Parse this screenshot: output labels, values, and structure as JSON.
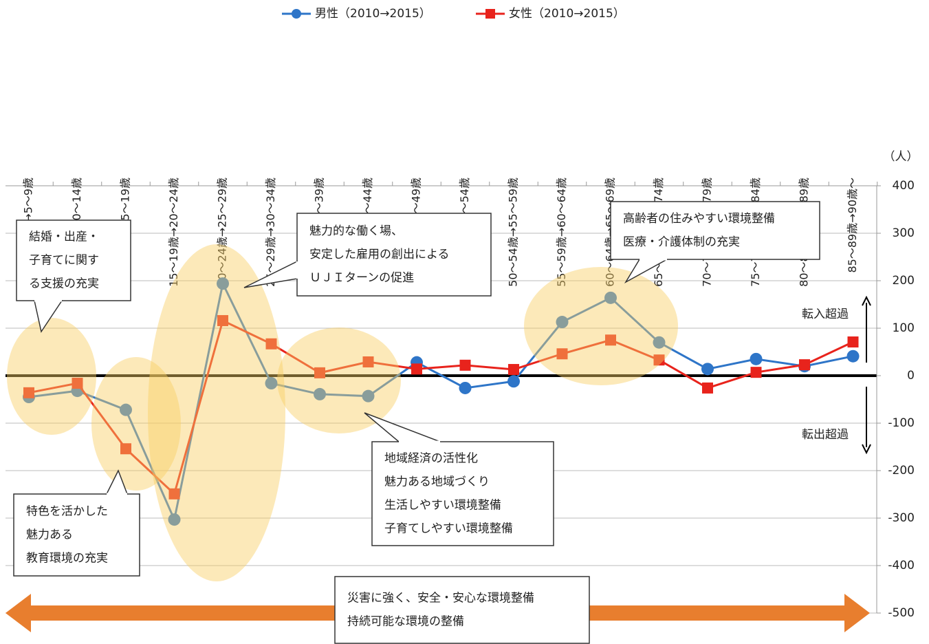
{
  "chart_data": {
    "type": "line",
    "unit_label": "（人）",
    "categories": [
      "0～4歳→5～9歳",
      "5～9歳→10～14歳",
      "10～14歳→15～19歳",
      "15～19歳→20～24歳",
      "20～24歳→25～29歳",
      "25～29歳→30～34歳",
      "30～34歳→35～39歳",
      "35～39歳→40～44歳",
      "40～44歳→45～49歳",
      "45～49歳→50～54歳",
      "50～54歳→55～59歳",
      "55～59歳→60～64歳",
      "60～64歳→65～69歳",
      "65～69歳→70～74歳",
      "70～74歳→75～79歳",
      "75～79歳→80～84歳",
      "80～84歳→85～89歳",
      "85～89歳→90歳～"
    ],
    "series": [
      {
        "name": "男性（2010→2015）",
        "color": "#2e75c8",
        "marker": "circle",
        "values": [
          -45,
          -32,
          -72,
          -303,
          194,
          -16,
          -39,
          -43,
          28,
          -26,
          -12,
          113,
          164,
          70,
          14,
          35,
          20,
          41
        ]
      },
      {
        "name": "女性（2010→2015）",
        "color": "#e8231c",
        "marker": "square",
        "values": [
          -36,
          -16,
          -154,
          -249,
          116,
          67,
          6,
          29,
          14,
          22,
          13,
          46,
          75,
          33,
          -26,
          7,
          23,
          71
        ]
      }
    ],
    "ylim": [
      -500,
      400
    ],
    "yticks": [
      -500,
      -400,
      -300,
      -200,
      -100,
      0,
      100,
      200,
      300,
      400
    ],
    "grid": true,
    "annotations": {
      "inflow": "転入超過",
      "outflow": "転出超過",
      "callouts": [
        {
          "lines": [
            "結婚・出産・",
            "子育てに関す",
            "る支援の充実"
          ]
        },
        {
          "lines": [
            "魅力的な働く場、",
            "安定した雇用の創出による",
            "ＵＪＩターンの促進"
          ]
        },
        {
          "lines": [
            "高齢者の住みやすい環境整備",
            "医療・介護体制の充実"
          ]
        },
        {
          "lines": [
            "地域経済の活性化",
            "魅力ある地域づくり",
            "生活しやすい環境整備",
            "子育てしやすい環境整備"
          ]
        },
        {
          "lines": [
            "特色を活かした",
            "魅力ある",
            "教育環境の充実"
          ]
        },
        {
          "lines": [
            "災害に強く、安全・安心な環境整備",
            "持続可能な環境の整備"
          ]
        }
      ]
    }
  }
}
